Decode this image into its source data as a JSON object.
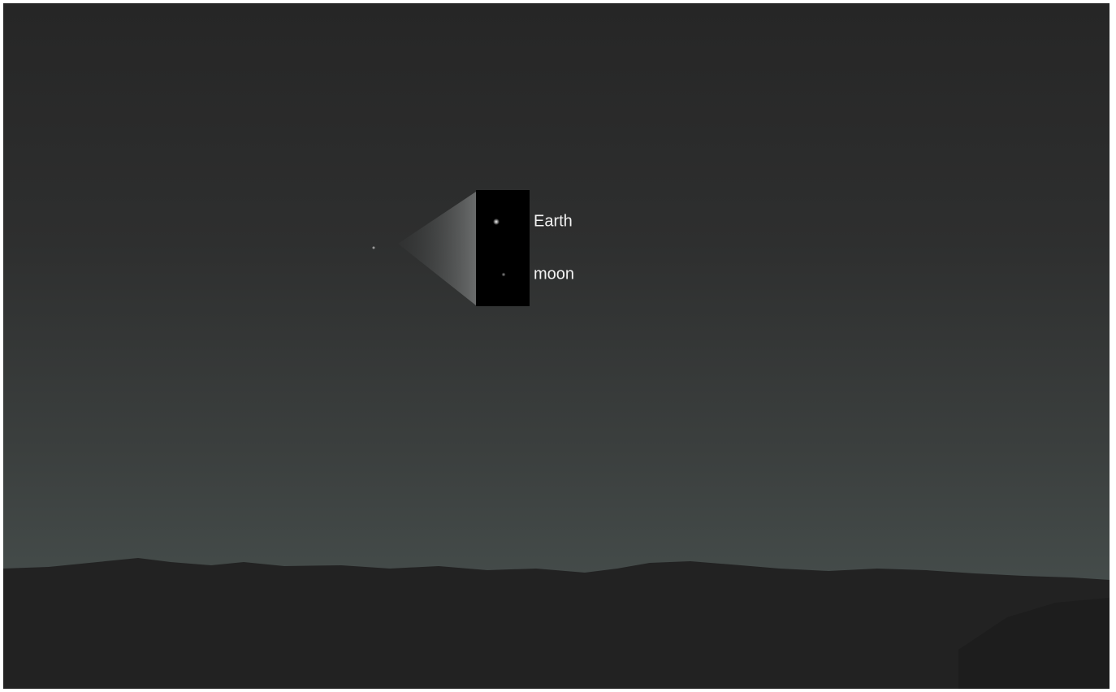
{
  "labels": {
    "earth": "Earth",
    "moon": "moon"
  }
}
